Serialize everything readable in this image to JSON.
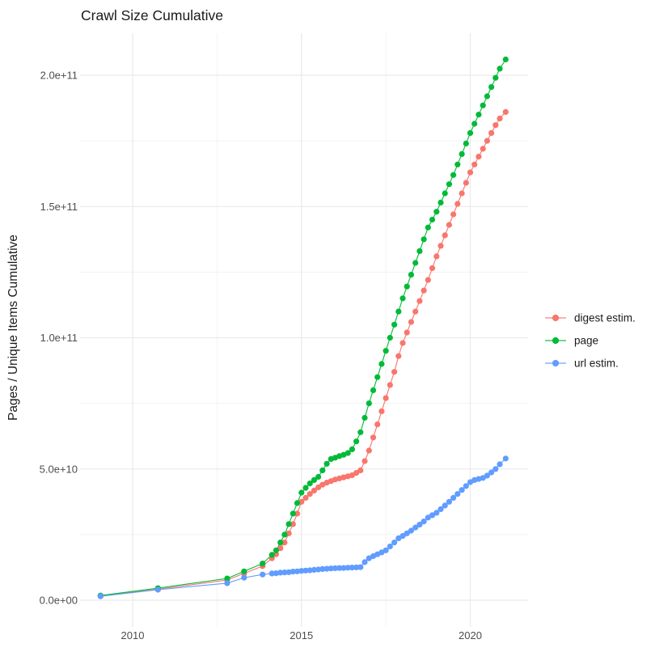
{
  "page": {
    "title": "Crawl Size Cumulative"
  },
  "axes": {
    "y_title": "Pages / Unique Items Cumulative",
    "y_ticks": [
      {
        "label": "0.0e+00",
        "value_e9": 0
      },
      {
        "label": "5.0e+10",
        "value_e9": 50
      },
      {
        "label": "1.0e+11",
        "value_e9": 100
      },
      {
        "label": "1.5e+11",
        "value_e9": 150
      },
      {
        "label": "2.0e+11",
        "value_e9": 200
      }
    ],
    "y_minor_e9": [
      25,
      75,
      125,
      175
    ],
    "x_ticks": [
      {
        "label": "2010",
        "year": 2010
      },
      {
        "label": "2015",
        "year": 2015
      },
      {
        "label": "2020",
        "year": 2020
      }
    ],
    "x_minor_years": [
      2012.5,
      2017.5
    ]
  },
  "legend": {
    "items": [
      {
        "label": "digest estim.",
        "color": "#F8766D"
      },
      {
        "label": "page",
        "color": "#00BA38"
      },
      {
        "label": "url estim.",
        "color": "#619CFF"
      }
    ]
  },
  "colors": {
    "background": "#ffffff",
    "grid_major": "#ebebeb",
    "grid_minor": "#f2f2f2",
    "tick_text": "#4d4d4d",
    "title_text": "#1a1a1a",
    "digest": "#F8766D",
    "page": "#00BA38",
    "url": "#619CFF"
  },
  "chart_data": {
    "type": "line",
    "title": "Crawl Size Cumulative",
    "xlabel": "",
    "ylabel": "Pages / Unique Items Cumulative",
    "x_unit": "year (decimal)",
    "y_unit": "items; value_e9 means value × 1e9",
    "xlim": [
      2008.45,
      2021.75
    ],
    "ylim_e9": [
      -10,
      216
    ],
    "grid": true,
    "legend_position": "right",
    "marker": "point",
    "series": [
      {
        "name": "digest estim.",
        "color": "#F8766D",
        "points_year_value_e9": [
          [
            2009.05,
            1.6
          ],
          [
            2010.75,
            4.2
          ],
          [
            2012.8,
            7.7
          ],
          [
            2013.3,
            10.2
          ],
          [
            2013.85,
            13
          ],
          [
            2014.125,
            16
          ],
          [
            2014.25,
            17.5
          ],
          [
            2014.375,
            19.8
          ],
          [
            2014.5,
            22
          ],
          [
            2014.625,
            25.5
          ],
          [
            2014.75,
            29
          ],
          [
            2014.875,
            33
          ],
          [
            2015.0,
            37.5
          ],
          [
            2015.125,
            39
          ],
          [
            2015.25,
            40.5
          ],
          [
            2015.375,
            41.8
          ],
          [
            2015.5,
            43
          ],
          [
            2015.625,
            44
          ],
          [
            2015.75,
            44.8
          ],
          [
            2015.875,
            45.4
          ],
          [
            2016.0,
            46
          ],
          [
            2016.125,
            46.4
          ],
          [
            2016.25,
            46.8
          ],
          [
            2016.375,
            47.2
          ],
          [
            2016.5,
            47.6
          ],
          [
            2016.625,
            48.5
          ],
          [
            2016.75,
            49.5
          ],
          [
            2016.875,
            53
          ],
          [
            2017.0,
            57
          ],
          [
            2017.125,
            62
          ],
          [
            2017.25,
            67
          ],
          [
            2017.375,
            72
          ],
          [
            2017.5,
            77
          ],
          [
            2017.625,
            82
          ],
          [
            2017.75,
            87
          ],
          [
            2017.875,
            93
          ],
          [
            2018.0,
            98
          ],
          [
            2018.125,
            102
          ],
          [
            2018.25,
            106
          ],
          [
            2018.375,
            110
          ],
          [
            2018.5,
            114
          ],
          [
            2018.625,
            118
          ],
          [
            2018.75,
            122
          ],
          [
            2018.875,
            126.5
          ],
          [
            2019.0,
            131
          ],
          [
            2019.125,
            135
          ],
          [
            2019.25,
            139
          ],
          [
            2019.375,
            143
          ],
          [
            2019.5,
            147
          ],
          [
            2019.625,
            151
          ],
          [
            2019.75,
            155
          ],
          [
            2019.875,
            159
          ],
          [
            2020.0,
            163
          ],
          [
            2020.125,
            166
          ],
          [
            2020.25,
            169
          ],
          [
            2020.375,
            172
          ],
          [
            2020.5,
            175
          ],
          [
            2020.625,
            178
          ],
          [
            2020.75,
            181
          ],
          [
            2020.875,
            183.5
          ],
          [
            2021.05,
            186
          ]
        ]
      },
      {
        "name": "page",
        "color": "#00BA38",
        "points_year_value_e9": [
          [
            2009.05,
            1.8
          ],
          [
            2010.75,
            4.6
          ],
          [
            2012.8,
            8.3
          ],
          [
            2013.3,
            11
          ],
          [
            2013.85,
            14
          ],
          [
            2014.125,
            17.3
          ],
          [
            2014.25,
            19
          ],
          [
            2014.375,
            22
          ],
          [
            2014.5,
            25
          ],
          [
            2014.625,
            29
          ],
          [
            2014.75,
            33
          ],
          [
            2014.875,
            37
          ],
          [
            2015.0,
            41
          ],
          [
            2015.125,
            42.8
          ],
          [
            2015.25,
            44.5
          ],
          [
            2015.375,
            45.8
          ],
          [
            2015.5,
            47
          ],
          [
            2015.625,
            49.5
          ],
          [
            2015.75,
            52
          ],
          [
            2015.875,
            53.8
          ],
          [
            2016.0,
            54.3
          ],
          [
            2016.125,
            54.9
          ],
          [
            2016.25,
            55.4
          ],
          [
            2016.375,
            56.1
          ],
          [
            2016.5,
            57.5
          ],
          [
            2016.625,
            60.5
          ],
          [
            2016.75,
            64
          ],
          [
            2016.875,
            69.5
          ],
          [
            2017.0,
            75
          ],
          [
            2017.125,
            80
          ],
          [
            2017.25,
            85
          ],
          [
            2017.375,
            90
          ],
          [
            2017.5,
            95
          ],
          [
            2017.625,
            100
          ],
          [
            2017.75,
            105
          ],
          [
            2017.875,
            110
          ],
          [
            2018.0,
            115
          ],
          [
            2018.125,
            119.5
          ],
          [
            2018.25,
            124
          ],
          [
            2018.375,
            128.5
          ],
          [
            2018.5,
            133
          ],
          [
            2018.625,
            137.5
          ],
          [
            2018.75,
            142
          ],
          [
            2018.875,
            145
          ],
          [
            2019.0,
            148
          ],
          [
            2019.125,
            151.5
          ],
          [
            2019.25,
            155
          ],
          [
            2019.375,
            158.5
          ],
          [
            2019.5,
            162
          ],
          [
            2019.625,
            166
          ],
          [
            2019.75,
            170
          ],
          [
            2019.875,
            174
          ],
          [
            2020.0,
            178
          ],
          [
            2020.125,
            181.5
          ],
          [
            2020.25,
            185
          ],
          [
            2020.375,
            188.5
          ],
          [
            2020.5,
            192
          ],
          [
            2020.625,
            195.5
          ],
          [
            2020.75,
            199
          ],
          [
            2020.875,
            202.5
          ],
          [
            2021.05,
            206
          ]
        ]
      },
      {
        "name": "url estim.",
        "color": "#619CFF",
        "points_year_value_e9": [
          [
            2009.05,
            1.5
          ],
          [
            2010.75,
            4.0
          ],
          [
            2012.8,
            6.5
          ],
          [
            2013.3,
            8.6
          ],
          [
            2013.85,
            9.8
          ],
          [
            2014.125,
            10.2
          ],
          [
            2014.25,
            10.3
          ],
          [
            2014.375,
            10.5
          ],
          [
            2014.5,
            10.6
          ],
          [
            2014.625,
            10.7
          ],
          [
            2014.75,
            10.9
          ],
          [
            2014.875,
            11.0
          ],
          [
            2015.0,
            11.2
          ],
          [
            2015.125,
            11.3
          ],
          [
            2015.25,
            11.4
          ],
          [
            2015.375,
            11.6
          ],
          [
            2015.5,
            11.7
          ],
          [
            2015.625,
            11.9
          ],
          [
            2015.75,
            12.0
          ],
          [
            2015.875,
            12.1
          ],
          [
            2016.0,
            12.2
          ],
          [
            2016.125,
            12.25
          ],
          [
            2016.25,
            12.3
          ],
          [
            2016.375,
            12.4
          ],
          [
            2016.5,
            12.45
          ],
          [
            2016.625,
            12.5
          ],
          [
            2016.75,
            12.6
          ],
          [
            2016.875,
            14.5
          ],
          [
            2017.0,
            16
          ],
          [
            2017.125,
            16.8
          ],
          [
            2017.25,
            17.5
          ],
          [
            2017.375,
            18.2
          ],
          [
            2017.5,
            19
          ],
          [
            2017.625,
            20.5
          ],
          [
            2017.75,
            22
          ],
          [
            2017.875,
            23.6
          ],
          [
            2018.0,
            24.5
          ],
          [
            2018.125,
            25.5
          ],
          [
            2018.25,
            26.5
          ],
          [
            2018.375,
            27.7
          ],
          [
            2018.5,
            28.8
          ],
          [
            2018.625,
            30
          ],
          [
            2018.75,
            31.5
          ],
          [
            2018.875,
            32.4
          ],
          [
            2019.0,
            33.3
          ],
          [
            2019.125,
            34.7
          ],
          [
            2019.25,
            36.1
          ],
          [
            2019.375,
            37.5
          ],
          [
            2019.5,
            39
          ],
          [
            2019.625,
            40.5
          ],
          [
            2019.75,
            42
          ],
          [
            2019.875,
            43.5
          ],
          [
            2020.0,
            45
          ],
          [
            2020.125,
            45.8
          ],
          [
            2020.25,
            46.2
          ],
          [
            2020.375,
            46.6
          ],
          [
            2020.5,
            47.5
          ],
          [
            2020.625,
            48.7
          ],
          [
            2020.75,
            50
          ],
          [
            2020.875,
            51.8
          ],
          [
            2021.05,
            54
          ]
        ]
      }
    ]
  }
}
